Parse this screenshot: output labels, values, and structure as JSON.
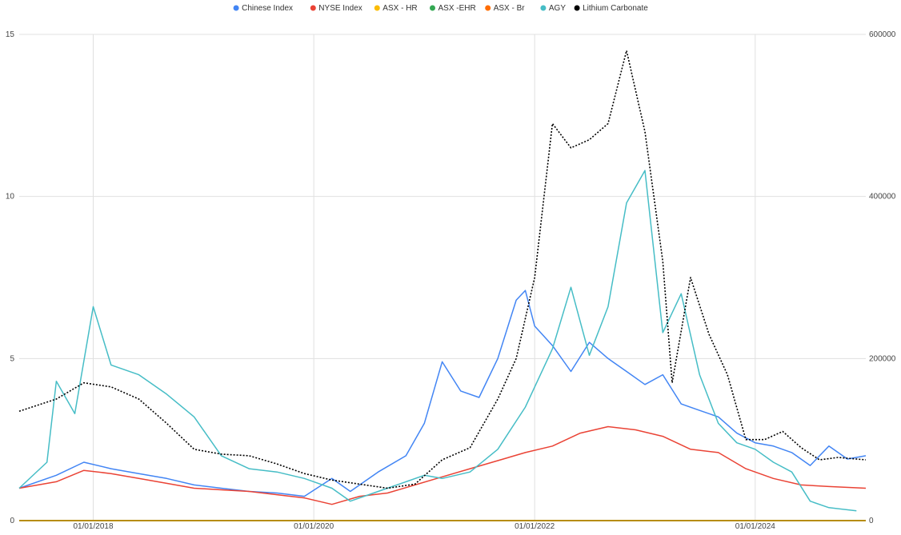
{
  "chart_data": {
    "type": "line",
    "legend_position": "top",
    "grid": true,
    "x_ticks": [
      "01/01/2018",
      "01/01/2020",
      "01/01/2022",
      "01/01/2024"
    ],
    "x_range": [
      "2017-05-01",
      "2025-01-01"
    ],
    "y_left": {
      "range": [
        0,
        15
      ],
      "ticks": [
        "0",
        "5",
        "10",
        "15"
      ]
    },
    "y_right": {
      "range": [
        0,
        600000
      ],
      "ticks": [
        "0",
        "200000",
        "400000",
        "600000"
      ]
    },
    "series": [
      {
        "name": "Chinese Index",
        "color": "#4285f4",
        "axis": "left",
        "dash": "solid",
        "points": [
          [
            "2017-05-01",
            1.0
          ],
          [
            "2017-09-01",
            1.4
          ],
          [
            "2017-12-01",
            1.8
          ],
          [
            "2018-03-01",
            1.6
          ],
          [
            "2018-06-01",
            1.45
          ],
          [
            "2018-09-01",
            1.3
          ],
          [
            "2018-12-01",
            1.1
          ],
          [
            "2019-03-01",
            1.0
          ],
          [
            "2019-06-01",
            0.9
          ],
          [
            "2019-09-01",
            0.85
          ],
          [
            "2019-12-01",
            0.75
          ],
          [
            "2020-03-01",
            1.3
          ],
          [
            "2020-05-01",
            0.9
          ],
          [
            "2020-08-01",
            1.5
          ],
          [
            "2020-11-01",
            2.0
          ],
          [
            "2021-01-01",
            3.0
          ],
          [
            "2021-03-01",
            4.9
          ],
          [
            "2021-05-01",
            4.0
          ],
          [
            "2021-07-01",
            3.8
          ],
          [
            "2021-09-01",
            5.0
          ],
          [
            "2021-11-01",
            6.8
          ],
          [
            "2021-12-01",
            7.1
          ],
          [
            "2022-01-01",
            6.0
          ],
          [
            "2022-03-01",
            5.4
          ],
          [
            "2022-05-01",
            4.6
          ],
          [
            "2022-07-01",
            5.5
          ],
          [
            "2022-09-01",
            5.0
          ],
          [
            "2022-11-01",
            4.6
          ],
          [
            "2023-01-01",
            4.2
          ],
          [
            "2023-03-01",
            4.5
          ],
          [
            "2023-05-01",
            3.6
          ],
          [
            "2023-07-01",
            3.4
          ],
          [
            "2023-09-01",
            3.2
          ],
          [
            "2023-11-01",
            2.7
          ],
          [
            "2024-01-01",
            2.4
          ],
          [
            "2024-03-01",
            2.3
          ],
          [
            "2024-05-01",
            2.1
          ],
          [
            "2024-07-01",
            1.7
          ],
          [
            "2024-09-01",
            2.3
          ],
          [
            "2024-11-01",
            1.9
          ],
          [
            "2025-01-01",
            2.0
          ]
        ]
      },
      {
        "name": "NYSE Index",
        "color": "#ea4335",
        "axis": "left",
        "dash": "solid",
        "points": [
          [
            "2017-05-01",
            1.0
          ],
          [
            "2017-09-01",
            1.2
          ],
          [
            "2017-12-01",
            1.55
          ],
          [
            "2018-03-01",
            1.45
          ],
          [
            "2018-06-01",
            1.3
          ],
          [
            "2018-09-01",
            1.15
          ],
          [
            "2018-12-01",
            1.0
          ],
          [
            "2019-03-01",
            0.95
          ],
          [
            "2019-06-01",
            0.9
          ],
          [
            "2019-09-01",
            0.8
          ],
          [
            "2019-12-01",
            0.7
          ],
          [
            "2020-03-01",
            0.5
          ],
          [
            "2020-06-01",
            0.75
          ],
          [
            "2020-09-01",
            0.85
          ],
          [
            "2020-12-01",
            1.1
          ],
          [
            "2021-03-01",
            1.35
          ],
          [
            "2021-06-01",
            1.6
          ],
          [
            "2021-09-01",
            1.85
          ],
          [
            "2021-12-01",
            2.1
          ],
          [
            "2022-03-01",
            2.3
          ],
          [
            "2022-06-01",
            2.7
          ],
          [
            "2022-09-01",
            2.9
          ],
          [
            "2022-12-01",
            2.8
          ],
          [
            "2023-03-01",
            2.6
          ],
          [
            "2023-06-01",
            2.2
          ],
          [
            "2023-09-01",
            2.1
          ],
          [
            "2023-12-01",
            1.6
          ],
          [
            "2024-03-01",
            1.3
          ],
          [
            "2024-06-01",
            1.1
          ],
          [
            "2024-09-01",
            1.05
          ],
          [
            "2025-01-01",
            1.0
          ]
        ]
      },
      {
        "name": "ASX - HR",
        "color": "#fbbc04",
        "axis": "left",
        "dash": "solid",
        "points": [
          [
            "2017-05-01",
            0
          ],
          [
            "2025-01-01",
            0
          ]
        ]
      },
      {
        "name": "ASX -EHR",
        "color": "#34a853",
        "axis": "left",
        "dash": "solid",
        "points": [
          [
            "2017-05-01",
            0
          ],
          [
            "2025-01-01",
            0
          ]
        ]
      },
      {
        "name": "ASX - Br",
        "color": "#ff6d01",
        "axis": "left",
        "dash": "solid",
        "points": [
          [
            "2017-05-01",
            0
          ],
          [
            "2025-01-01",
            0
          ]
        ]
      },
      {
        "name": "AGY",
        "color": "#46bdc6",
        "axis": "left",
        "dash": "solid",
        "points": [
          [
            "2017-05-01",
            1.0
          ],
          [
            "2017-08-01",
            1.8
          ],
          [
            "2017-09-01",
            4.3
          ],
          [
            "2017-11-01",
            3.3
          ],
          [
            "2018-01-01",
            6.6
          ],
          [
            "2018-03-01",
            4.8
          ],
          [
            "2018-06-01",
            4.5
          ],
          [
            "2018-09-01",
            3.9
          ],
          [
            "2018-12-01",
            3.2
          ],
          [
            "2019-03-01",
            2.0
          ],
          [
            "2019-06-01",
            1.6
          ],
          [
            "2019-09-01",
            1.5
          ],
          [
            "2019-12-01",
            1.3
          ],
          [
            "2020-03-01",
            1.0
          ],
          [
            "2020-05-01",
            0.6
          ],
          [
            "2020-08-01",
            0.9
          ],
          [
            "2020-11-01",
            1.2
          ],
          [
            "2021-01-01",
            1.4
          ],
          [
            "2021-03-01",
            1.3
          ],
          [
            "2021-06-01",
            1.5
          ],
          [
            "2021-09-01",
            2.2
          ],
          [
            "2021-12-01",
            3.5
          ],
          [
            "2022-03-01",
            5.3
          ],
          [
            "2022-05-01",
            7.2
          ],
          [
            "2022-07-01",
            5.1
          ],
          [
            "2022-09-01",
            6.6
          ],
          [
            "2022-11-01",
            9.8
          ],
          [
            "2023-01-01",
            10.8
          ],
          [
            "2023-03-01",
            5.8
          ],
          [
            "2023-05-01",
            7.0
          ],
          [
            "2023-07-01",
            4.5
          ],
          [
            "2023-09-01",
            3.0
          ],
          [
            "2023-11-01",
            2.4
          ],
          [
            "2024-01-01",
            2.2
          ],
          [
            "2024-03-01",
            1.8
          ],
          [
            "2024-05-01",
            1.5
          ],
          [
            "2024-07-01",
            0.6
          ],
          [
            "2024-09-01",
            0.4
          ],
          [
            "2024-12-01",
            0.3
          ]
        ]
      },
      {
        "name": "Lithium Carbonate",
        "color": "#000000",
        "axis": "right",
        "dash": "dotted",
        "points": [
          [
            "2017-05-01",
            135000
          ],
          [
            "2017-09-01",
            150000
          ],
          [
            "2017-12-01",
            170000
          ],
          [
            "2018-03-01",
            165000
          ],
          [
            "2018-06-01",
            150000
          ],
          [
            "2018-09-01",
            120000
          ],
          [
            "2018-12-01",
            88000
          ],
          [
            "2019-03-01",
            82000
          ],
          [
            "2019-06-01",
            80000
          ],
          [
            "2019-09-01",
            70000
          ],
          [
            "2019-12-01",
            58000
          ],
          [
            "2020-03-01",
            50000
          ],
          [
            "2020-06-01",
            45000
          ],
          [
            "2020-09-01",
            40000
          ],
          [
            "2020-12-01",
            45000
          ],
          [
            "2021-03-01",
            75000
          ],
          [
            "2021-06-01",
            90000
          ],
          [
            "2021-09-01",
            150000
          ],
          [
            "2021-11-01",
            200000
          ],
          [
            "2022-01-01",
            300000
          ],
          [
            "2022-03-01",
            490000
          ],
          [
            "2022-05-01",
            460000
          ],
          [
            "2022-07-01",
            470000
          ],
          [
            "2022-09-01",
            490000
          ],
          [
            "2022-11-01",
            580000
          ],
          [
            "2023-01-01",
            480000
          ],
          [
            "2023-03-01",
            320000
          ],
          [
            "2023-04-01",
            170000
          ],
          [
            "2023-06-01",
            300000
          ],
          [
            "2023-08-01",
            230000
          ],
          [
            "2023-10-01",
            180000
          ],
          [
            "2023-12-01",
            100000
          ],
          [
            "2024-02-01",
            100000
          ],
          [
            "2024-04-01",
            110000
          ],
          [
            "2024-06-01",
            90000
          ],
          [
            "2024-08-01",
            75000
          ],
          [
            "2024-10-01",
            78000
          ],
          [
            "2025-01-01",
            75000
          ]
        ]
      }
    ]
  }
}
